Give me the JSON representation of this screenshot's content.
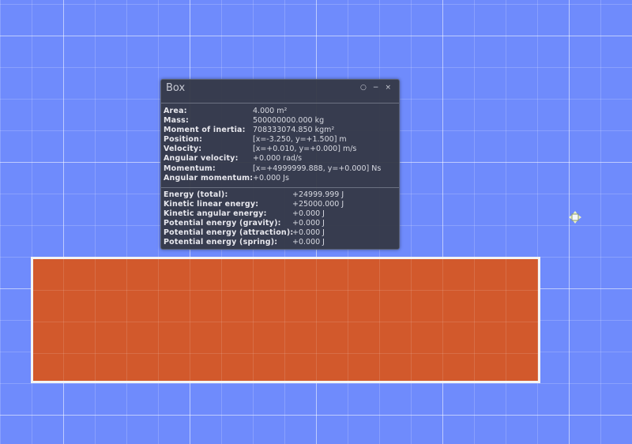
{
  "panel": {
    "title": "Box",
    "controls": {
      "pin": "○",
      "minimize": "−",
      "close": "×"
    },
    "properties": [
      {
        "label": "Area:",
        "value": "4.000 m²"
      },
      {
        "label": "Mass:",
        "value": "500000000.000 kg"
      },
      {
        "label": "Moment of inertia:",
        "value": "708333074.850 kgm²"
      },
      {
        "label": "Position:",
        "value": "[x=-3.250, y=+1.500] m"
      },
      {
        "label": "Velocity:",
        "value": "[x=+0.010, y=+0.000] m/s"
      },
      {
        "label": "Angular velocity:",
        "value": "+0.000 rad/s"
      },
      {
        "label": "Momentum:",
        "value": "[x=+4999999.888, y=+0.000] Ns"
      },
      {
        "label": "Angular momentum:",
        "value": "+0.000 Js"
      }
    ],
    "energies": [
      {
        "label": "Energy (total):",
        "value": "+24999.999 J"
      },
      {
        "label": "Kinetic linear energy:",
        "value": "+25000.000 J"
      },
      {
        "label": "Kinetic angular energy:",
        "value": "+0.000 J"
      },
      {
        "label": "Potential energy (gravity):",
        "value": "+0.000 J"
      },
      {
        "label": "Potential energy (attraction):",
        "value": "+0.000 J"
      },
      {
        "label": "Potential energy (spring):",
        "value": "+0.000 J"
      }
    ]
  },
  "colors": {
    "background": "#6f8bfc",
    "box": "#d2592c",
    "panel": "#343846"
  },
  "icons": {
    "cursor": "move-cursor-icon"
  }
}
